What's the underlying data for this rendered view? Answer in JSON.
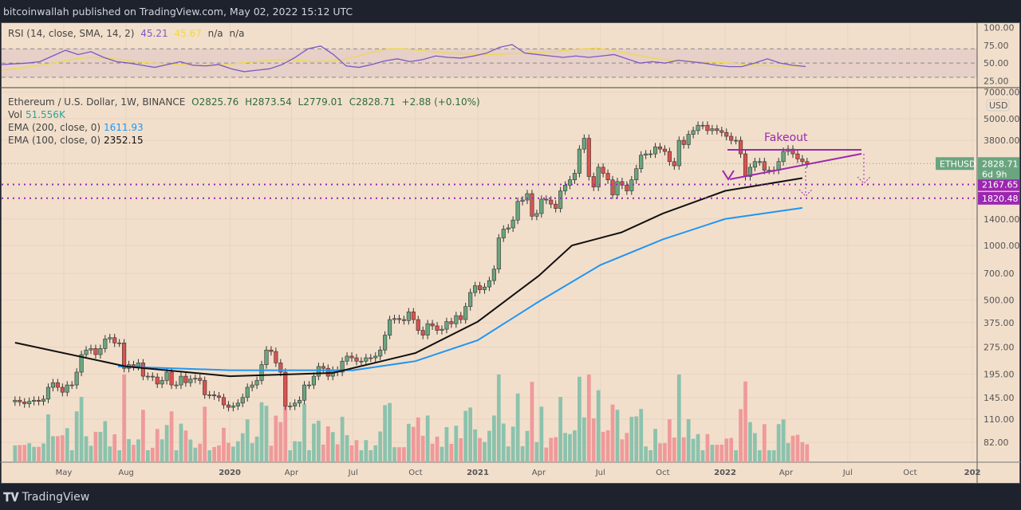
{
  "header": {
    "publisher": "bitcoinwallah published on TradingView.com, May 02, 2022 15:12 UTC"
  },
  "footer": {
    "brand": "TradingView"
  },
  "rsi_legend": {
    "label": "RSI (14, close, SMA, 14, 2)",
    "rsi": "45.21",
    "sma": "45.67",
    "na1": "n/a",
    "na2": "n/a"
  },
  "price_legend": {
    "symbol": "Ethereum / U.S. Dollar, 1W, BINANCE",
    "open": "O2825.76",
    "high": "H2873.54",
    "low": "L2779.01",
    "close": "C2828.71",
    "change": "+2.88 (+0.10%)",
    "vol_label": "Vol",
    "vol": "51.556K",
    "ema200_label": "EMA (200, close, 0)",
    "ema200": "1611.93",
    "ema100_label": "EMA (100, close, 0)",
    "ema100": "2352.15"
  },
  "annotation": {
    "text": "Fakeout",
    "color": "#9c27b0"
  },
  "colors": {
    "up": "#6aa57f",
    "down": "#d9534f",
    "ema100": "#111111",
    "ema200": "#2196f3",
    "rsi": "#7e57c2",
    "rsi_sma": "#f0d84a",
    "vol_up": "#8cc2ad",
    "vol_down": "#ef9a9a",
    "level": "#9c27b0"
  },
  "chart_data": {
    "type": "candlestick",
    "scale": "log",
    "interval": "1W",
    "start_week": "2019-02-18",
    "closes": [
      140,
      137,
      134,
      138,
      140,
      138,
      142,
      165,
      175,
      165,
      155,
      170,
      170,
      200,
      250,
      265,
      270,
      250,
      270,
      305,
      310,
      290,
      290,
      210,
      220,
      215,
      225,
      190,
      190,
      188,
      172,
      180,
      200,
      170,
      170,
      190,
      175,
      183,
      185,
      180,
      150,
      150,
      148,
      145,
      132,
      128,
      130,
      135,
      145,
      165,
      170,
      180,
      220,
      265,
      260,
      225,
      200,
      130,
      130,
      135,
      140,
      170,
      170,
      190,
      215,
      210,
      190,
      205,
      200,
      230,
      245,
      240,
      230,
      230,
      240,
      240,
      245,
      265,
      320,
      390,
      395,
      390,
      385,
      430,
      390,
      340,
      320,
      370,
      360,
      340,
      345,
      380,
      370,
      410,
      390,
      460,
      550,
      600,
      570,
      590,
      640,
      740,
      1100,
      1230,
      1250,
      1380,
      1750,
      1780,
      1930,
      1450,
      1500,
      1800,
      1780,
      1690,
      1600,
      2000,
      2150,
      2300,
      2500,
      3400,
      3900,
      2400,
      2100,
      2700,
      2500,
      2300,
      1900,
      2250,
      2150,
      2000,
      2300,
      2650,
      3150,
      3200,
      3200,
      3500,
      3400,
      3300,
      2900,
      2750,
      3800,
      3600,
      4100,
      4300,
      4600,
      4600,
      4300,
      4400,
      4300,
      4200,
      4000,
      3800,
      3800,
      3200,
      2400,
      2700,
      2900,
      2900,
      2600,
      2600,
      2600,
      2900,
      3300,
      3400,
      3200,
      3000,
      2900,
      2828.71
    ],
    "ema100": [
      [
        "2019-02-18",
        291
      ],
      [
        "2019-08-01",
        215
      ],
      [
        "2020-01-01",
        190
      ],
      [
        "2020-06-01",
        198
      ],
      [
        "2020-10-01",
        255
      ],
      [
        "2021-01-01",
        380
      ],
      [
        "2021-04-01",
        680
      ],
      [
        "2021-05-20",
        1000
      ],
      [
        "2021-08-01",
        1180
      ],
      [
        "2021-10-01",
        1500
      ],
      [
        "2022-01-01",
        2000
      ],
      [
        "2022-04-25",
        2352.15
      ]
    ],
    "ema200": [
      [
        "2019-07-20",
        215
      ],
      [
        "2020-01-01",
        205
      ],
      [
        "2020-07-01",
        205
      ],
      [
        "2020-10-01",
        230
      ],
      [
        "2021-01-01",
        300
      ],
      [
        "2021-04-01",
        490
      ],
      [
        "2021-07-01",
        780
      ],
      [
        "2021-10-01",
        1080
      ],
      [
        "2022-01-01",
        1400
      ],
      [
        "2022-04-25",
        1611.93
      ]
    ],
    "rsi": [
      48,
      49,
      50,
      52,
      60,
      68,
      62,
      66,
      58,
      52,
      50,
      47,
      44,
      48,
      52,
      47,
      46,
      48,
      42,
      38,
      40,
      42,
      48,
      58,
      70,
      74,
      62,
      46,
      44,
      48,
      53,
      56,
      52,
      55,
      60,
      58,
      57,
      60,
      64,
      72,
      76,
      64,
      62,
      60,
      58,
      60,
      58,
      60,
      62,
      56,
      50,
      52,
      50,
      54,
      52,
      50,
      47,
      45,
      45,
      50,
      56,
      50,
      47,
      45.21
    ],
    "rsi_sma": [
      40,
      42,
      45,
      48,
      52,
      56,
      58,
      57,
      55,
      52,
      50,
      49,
      48,
      47,
      46,
      48,
      50,
      52,
      54,
      55,
      54,
      52,
      53,
      55,
      60,
      66,
      70,
      70,
      68,
      66,
      64,
      63,
      62,
      62,
      63,
      64,
      65,
      66,
      68,
      70,
      71,
      68,
      64,
      60,
      56,
      54,
      52,
      52,
      51,
      50,
      48,
      47,
      46,
      46,
      45.67
    ],
    "price_ticks": [
      82,
      110,
      145,
      195,
      275,
      375,
      500,
      700,
      1000,
      1400,
      3800,
      5000,
      7000
    ],
    "rsi_ticks": [
      25,
      50,
      75,
      100
    ],
    "levels": [
      2167.65,
      1820.48
    ],
    "last_price": "2828.71",
    "last_label": "ETHUSD",
    "countdown": "6d 9h",
    "currency": "USD",
    "time_ticks": [
      [
        "2019-05-01",
        "May"
      ],
      [
        "2019-08-01",
        "Aug"
      ],
      [
        "2020-01-01",
        "2020"
      ],
      [
        "2020-04-01",
        "Apr"
      ],
      [
        "2020-07-01",
        "Jul"
      ],
      [
        "2020-10-01",
        "Oct"
      ],
      [
        "2021-01-01",
        "2021"
      ],
      [
        "2021-04-01",
        "Apr"
      ],
      [
        "2021-07-01",
        "Jul"
      ],
      [
        "2021-10-01",
        "Oct"
      ],
      [
        "2022-01-01",
        "2022"
      ],
      [
        "2022-04-01",
        "Apr"
      ],
      [
        "2022-07-01",
        "Jul"
      ],
      [
        "2022-10-01",
        "Oct"
      ],
      [
        "2023-01-01",
        "202"
      ]
    ]
  }
}
